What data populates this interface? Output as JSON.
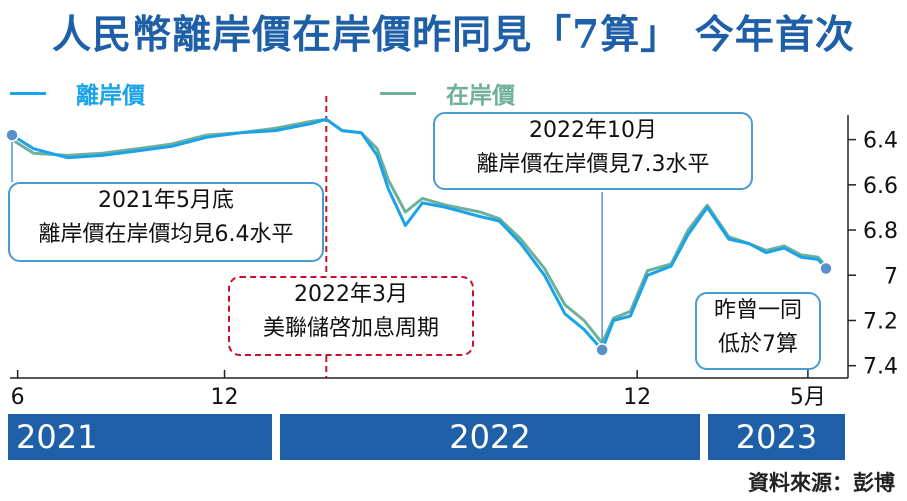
{
  "title": "人民幣離岸價在岸價昨同見「7算」 今年首次",
  "legend": [
    {
      "label": "離岸價",
      "color": "#1aa3e8"
    },
    {
      "label": "在岸價",
      "color": "#6fb09a"
    }
  ],
  "x_ticks": [
    "6",
    "12",
    "12",
    "5月"
  ],
  "y_ticks": [
    "6.4",
    "6.6",
    "6.8",
    "7",
    "7.2",
    "7.4"
  ],
  "years": [
    "2021",
    "2022",
    "2023"
  ],
  "annotations": {
    "may2021": [
      "2021年5月底",
      "離岸價在岸價均見6.4水平"
    ],
    "mar2022": [
      "2022年3月",
      "美聯儲啓加息周期"
    ],
    "oct2022": [
      "2022年10月",
      "離岸價在岸價見7.3水平"
    ],
    "now": [
      "昨曾一同",
      "低於7算"
    ]
  },
  "source": "資料來源：彭博",
  "chart_data": {
    "type": "line",
    "ylim": [
      6.3,
      7.45
    ],
    "y_inverted": true,
    "x": [
      "2021-05-27",
      "2021-06-15",
      "2021-07-15",
      "2021-08-15",
      "2021-09-15",
      "2021-10-15",
      "2021-11-15",
      "2021-12-15",
      "2022-01-15",
      "2022-02-15",
      "2022-03-01",
      "2022-03-15",
      "2022-04-01",
      "2022-04-15",
      "2022-04-25",
      "2022-05-10",
      "2022-05-25",
      "2022-06-15",
      "2022-07-15",
      "2022-08-01",
      "2022-08-20",
      "2022-09-10",
      "2022-09-28",
      "2022-10-15",
      "2022-10-31",
      "2022-11-10",
      "2022-11-25",
      "2022-12-10",
      "2022-12-31",
      "2023-01-15",
      "2023-02-01",
      "2023-02-20",
      "2023-03-10",
      "2023-03-25",
      "2023-04-10",
      "2023-04-25",
      "2023-05-10",
      "2023-05-17"
    ],
    "series": [
      {
        "name": "離岸價",
        "values": [
          6.38,
          6.44,
          6.48,
          6.47,
          6.45,
          6.43,
          6.39,
          6.37,
          6.36,
          6.33,
          6.31,
          6.36,
          6.37,
          6.47,
          6.62,
          6.78,
          6.68,
          6.7,
          6.74,
          6.76,
          6.86,
          7.0,
          7.17,
          7.24,
          7.33,
          7.2,
          7.18,
          7.0,
          6.96,
          6.82,
          6.7,
          6.84,
          6.86,
          6.9,
          6.88,
          6.92,
          6.93,
          6.97
        ]
      },
      {
        "name": "在岸價",
        "values": [
          6.4,
          6.46,
          6.47,
          6.46,
          6.44,
          6.42,
          6.38,
          6.37,
          6.35,
          6.32,
          6.31,
          6.36,
          6.37,
          6.44,
          6.58,
          6.72,
          6.66,
          6.69,
          6.72,
          6.75,
          6.84,
          6.97,
          7.13,
          7.2,
          7.3,
          7.19,
          7.16,
          6.98,
          6.95,
          6.8,
          6.69,
          6.83,
          6.86,
          6.89,
          6.87,
          6.91,
          6.92,
          6.96
        ]
      }
    ],
    "highlight_points": [
      {
        "series": 0,
        "x": "2021-05-27",
        "y": 6.38
      },
      {
        "series": 0,
        "x": "2022-10-31",
        "y": 7.33
      },
      {
        "series": 0,
        "x": "2023-05-17",
        "y": 6.97
      }
    ],
    "event_line": {
      "x": "2022-03-01"
    }
  }
}
